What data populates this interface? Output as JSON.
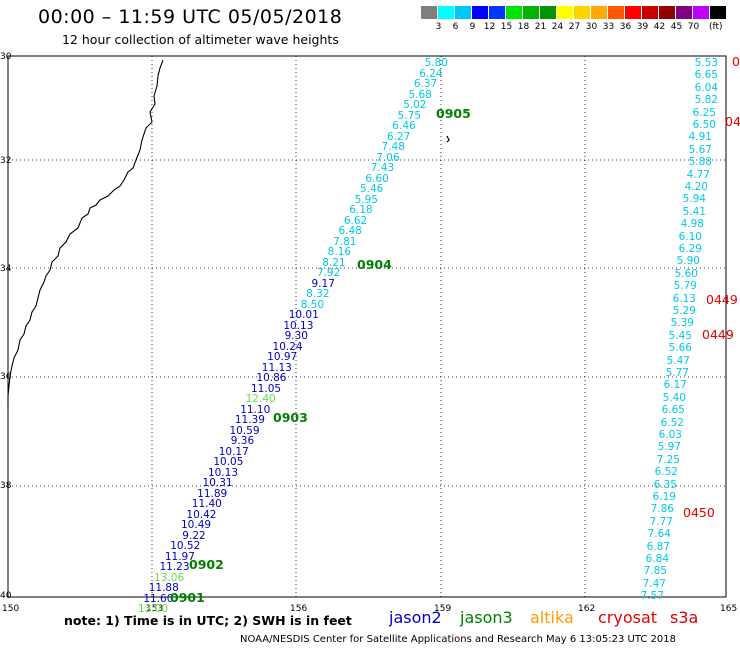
{
  "title": "00:00 – 11:59 UTC 05/05/2018",
  "subtitle": "12 hour collection of altimeter wave heights",
  "colorbar": {
    "colors": [
      "#7f7f7f",
      "#00ffff",
      "#00c8ff",
      "#0000ff",
      "#0037ff",
      "#00e400",
      "#00b400",
      "#009600",
      "#ffff00",
      "#ffd200",
      "#ffaa00",
      "#ff5a00",
      "#ff0000",
      "#c80000",
      "#960000",
      "#800080",
      "#c000ff",
      "#000000"
    ],
    "labels": [
      "3",
      "6",
      "9",
      "12",
      "15",
      "18",
      "21",
      "24",
      "27",
      "30",
      "33",
      "36",
      "39",
      "42",
      "45",
      "70"
    ],
    "unit": "(ft)"
  },
  "axes": {
    "lat_labels": [
      "30",
      "32",
      "34",
      "36",
      "38",
      "40"
    ],
    "lon_labels": [
      "150",
      "153",
      "156",
      "159",
      "162",
      "165"
    ]
  },
  "colors": {
    "jason2": "#0000c8",
    "jason3": "#008000",
    "altika": "#ff9900",
    "cryosat": "#e60000",
    "s3a": "#d40000",
    "cyan": "#00c8e6",
    "green_light": "#66dd44"
  },
  "track_left": [
    {
      "v": "5.80",
      "c": "cyan"
    },
    {
      "v": "6.24",
      "c": "cyan"
    },
    {
      "v": "6.37",
      "c": "cyan"
    },
    {
      "v": "5.68",
      "c": "cyan"
    },
    {
      "v": "5.02",
      "c": "cyan"
    },
    {
      "v": "5.75",
      "c": "cyan"
    },
    {
      "v": "6.46",
      "c": "cyan"
    },
    {
      "v": "6.27",
      "c": "cyan"
    },
    {
      "v": "7.48",
      "c": "cyan"
    },
    {
      "v": "7.06",
      "c": "cyan"
    },
    {
      "v": "7.43",
      "c": "cyan"
    },
    {
      "v": "6.60",
      "c": "cyan"
    },
    {
      "v": "5.46",
      "c": "cyan"
    },
    {
      "v": "5.95",
      "c": "cyan"
    },
    {
      "v": "6.18",
      "c": "cyan"
    },
    {
      "v": "6.62",
      "c": "cyan"
    },
    {
      "v": "6.48",
      "c": "cyan"
    },
    {
      "v": "7.81",
      "c": "cyan"
    },
    {
      "v": "8.16",
      "c": "cyan"
    },
    {
      "v": "8.21",
      "c": "cyan"
    },
    {
      "v": "7.92",
      "c": "cyan"
    },
    {
      "v": "9.17",
      "c": "blue"
    },
    {
      "v": "8.32",
      "c": "cyan"
    },
    {
      "v": "8.50",
      "c": "cyan"
    },
    {
      "v": "10.01",
      "c": "blue"
    },
    {
      "v": "10.13",
      "c": "blue"
    },
    {
      "v": "9.30",
      "c": "blue"
    },
    {
      "v": "10.24",
      "c": "blue"
    },
    {
      "v": "10.97",
      "c": "blue"
    },
    {
      "v": "11.13",
      "c": "blue"
    },
    {
      "v": "10.86",
      "c": "blue"
    },
    {
      "v": "11.05",
      "c": "blue"
    },
    {
      "v": "12.40",
      "c": "green_light"
    },
    {
      "v": "11.10",
      "c": "blue"
    },
    {
      "v": "11.39",
      "c": "blue"
    },
    {
      "v": "10.59",
      "c": "blue"
    },
    {
      "v": "9.36",
      "c": "blue"
    },
    {
      "v": "10.17",
      "c": "blue"
    },
    {
      "v": "10.05",
      "c": "blue"
    },
    {
      "v": "10.13",
      "c": "blue"
    },
    {
      "v": "10.31",
      "c": "blue"
    },
    {
      "v": "11.89",
      "c": "blue"
    },
    {
      "v": "11.40",
      "c": "blue"
    },
    {
      "v": "10.42",
      "c": "blue"
    },
    {
      "v": "10.49",
      "c": "blue"
    },
    {
      "v": "9.22",
      "c": "blue"
    },
    {
      "v": "10.52",
      "c": "blue"
    },
    {
      "v": "11.97",
      "c": "blue"
    },
    {
      "v": "11.23",
      "c": "blue"
    },
    {
      "v": "13.06",
      "c": "green_light"
    },
    {
      "v": "11.88",
      "c": "blue"
    },
    {
      "v": "11.60",
      "c": "blue"
    },
    {
      "v": "13.00",
      "c": "green_light"
    }
  ],
  "track_right": [
    "5.53",
    "6.65",
    "6.04",
    "5.82",
    "6.25",
    "6.50",
    "4.91",
    "5.67",
    "5.88",
    "4.77",
    "4.20",
    "5.94",
    "5.41",
    "4.98",
    "6.10",
    "6.29",
    "5.90",
    "5.60",
    "5.79",
    "6.13",
    "5.29",
    "5.39",
    "5.45",
    "5.66",
    "5.47",
    "5.77",
    "6.17",
    "5.40",
    "6.65",
    "6.52",
    "6.03",
    "5.97",
    "7.25",
    "6.52",
    "6.35",
    "6.19",
    "7.86",
    "7.77",
    "7.64",
    "6.87",
    "6.84",
    "7.85",
    "7.47",
    "7.57"
  ],
  "time_labels_left": [
    "0905",
    "0904",
    "0903",
    "0902",
    "0901"
  ],
  "time_labels_right": [
    "0",
    "04",
    "0449",
    "0449",
    "0450"
  ],
  "note": "note:  1) Time is in UTC;  2) SWH is in feet",
  "legend": [
    "jason2",
    "jason3",
    "altika",
    "cryosat",
    "s3a"
  ],
  "credit": "NOAA/NESDIS Center for Satellite Applications and Research     May  6 13:05:23 UTC 2018"
}
